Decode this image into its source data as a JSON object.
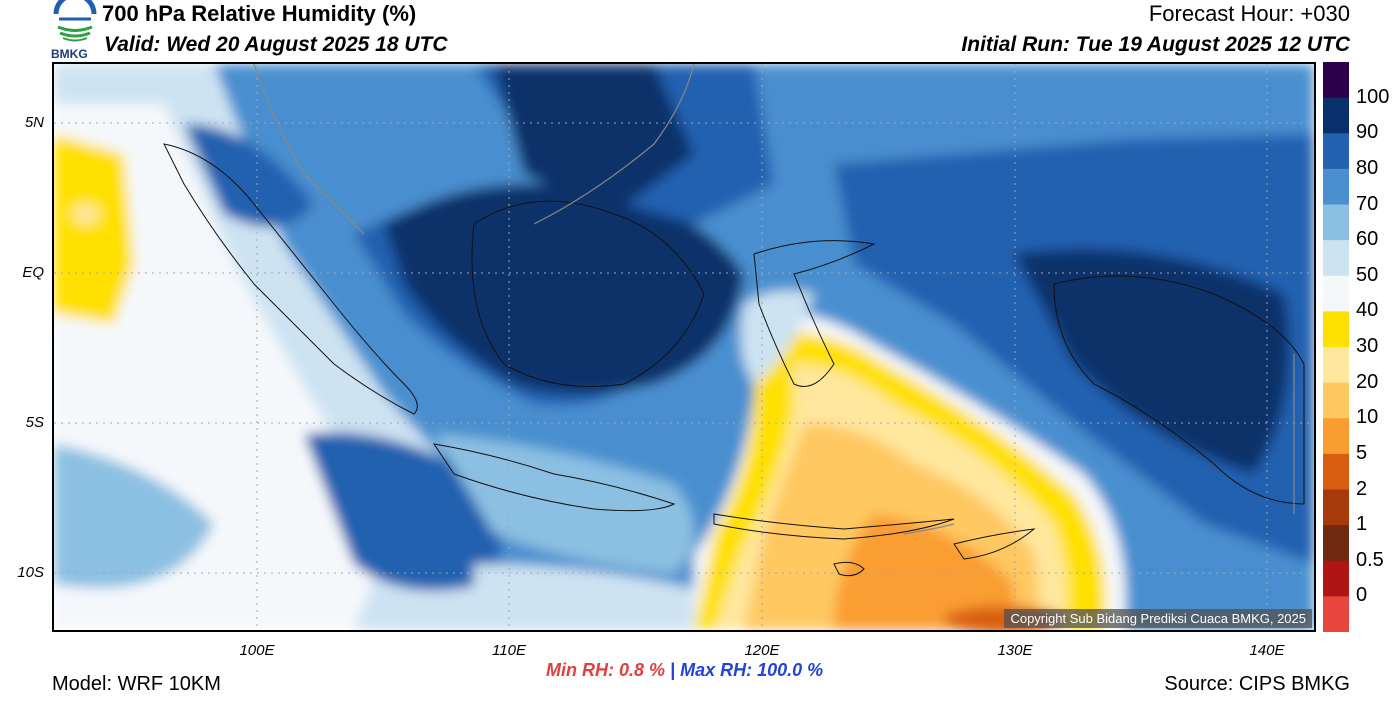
{
  "header": {
    "title": "700 hPa Relative Humidity (%)",
    "valid": "Valid: Wed 20 August 2025 18 UTC",
    "forecast_hour": "Forecast Hour: +030",
    "initial_run": "Initial Run: Tue 19 August 2025 12 UTC"
  },
  "logo": {
    "text": "BMKG",
    "icon": "bmkg-logo-icon"
  },
  "axes": {
    "lat_labels": [
      "5N",
      "EQ",
      "5S",
      "10S"
    ],
    "lon_labels": [
      "100E",
      "110E",
      "120E",
      "130E",
      "140E"
    ]
  },
  "colorbar": {
    "labels": [
      "100",
      "90",
      "80",
      "70",
      "60",
      "50",
      "40",
      "30",
      "20",
      "10",
      "5",
      "2",
      "1",
      "0.5",
      "0"
    ],
    "colors": [
      "#2d004b",
      "#08306b",
      "#2161b0",
      "#4a8fcf",
      "#8cc0e2",
      "#cde3f2",
      "#f5f8fb",
      "#ffe000",
      "#ffe79e",
      "#ffc860",
      "#fa9d30",
      "#d95e10",
      "#a63a0a",
      "#6e2a0e",
      "#b01515",
      "#e8453c"
    ]
  },
  "stats": {
    "min_label": "Min RH:   0.8 %",
    "separator": "|",
    "max_label": "Max RH: 100.0 %"
  },
  "footer": {
    "model": "Model: WRF 10KM",
    "source": "Source: CIPS BMKG",
    "copyright": "Copyright Sub Bidang Prediksi Cuaca BMKG, 2025"
  }
}
